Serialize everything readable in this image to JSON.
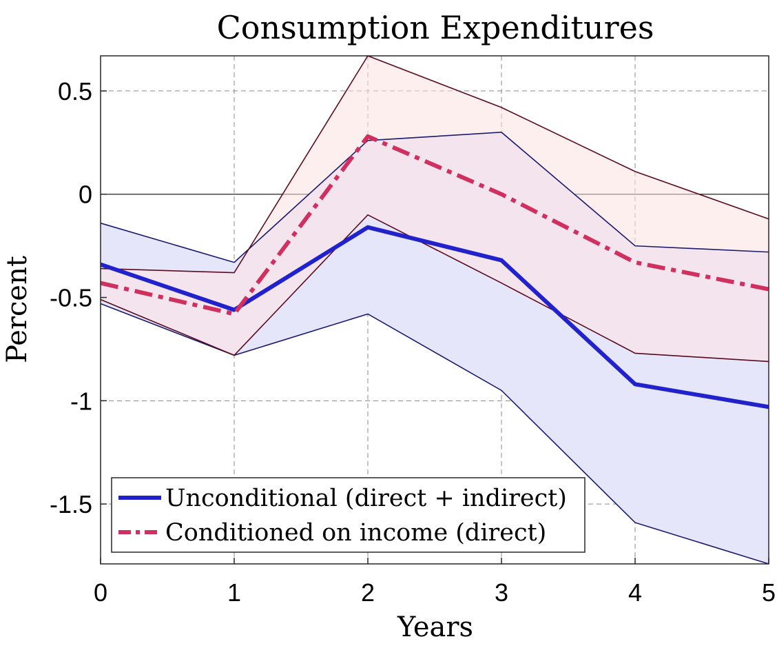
{
  "chart_data": {
    "type": "line",
    "title": "Consumption Expenditures",
    "xlabel": "Years",
    "ylabel": "Percent",
    "x": [
      0,
      1,
      2,
      3,
      4,
      5
    ],
    "xticks": [
      "0",
      "1",
      "2",
      "3",
      "4",
      "5"
    ],
    "yticks": [
      0.5,
      0,
      -0.5,
      -1,
      -1.5
    ],
    "ytick_labels": [
      "0.5",
      "0",
      "-0.5",
      "-1",
      "-1.5"
    ],
    "xlim": [
      0,
      5
    ],
    "ylim": [
      -1.79,
      0.67
    ],
    "grid": true,
    "zero_line": true,
    "legend_position": "bottom-left",
    "series": [
      {
        "name": "Unconditional (direct + indirect)",
        "style": "solid",
        "color": "#2222cc",
        "band_fill": "#e6e6fa",
        "band_edge": "#1a1a6e",
        "values": [
          -0.34,
          -0.56,
          -0.16,
          -0.32,
          -0.92,
          -1.03
        ],
        "upper": [
          -0.14,
          -0.33,
          0.26,
          0.3,
          -0.25,
          -0.28
        ],
        "lower": [
          -0.53,
          -0.78,
          -0.58,
          -0.95,
          -1.59,
          -1.79
        ]
      },
      {
        "name": "Conditioned on income (direct)",
        "style": "dash-dot",
        "color": "#d03060",
        "band_fill": "#fde2e2",
        "band_edge": "#5a0a1e",
        "values": [
          -0.43,
          -0.58,
          0.28,
          0.0,
          -0.33,
          -0.46
        ],
        "upper": [
          -0.36,
          -0.38,
          0.67,
          0.42,
          0.11,
          -0.12
        ],
        "lower": [
          -0.51,
          -0.78,
          -0.1,
          -0.43,
          -0.77,
          -0.81
        ]
      }
    ]
  }
}
